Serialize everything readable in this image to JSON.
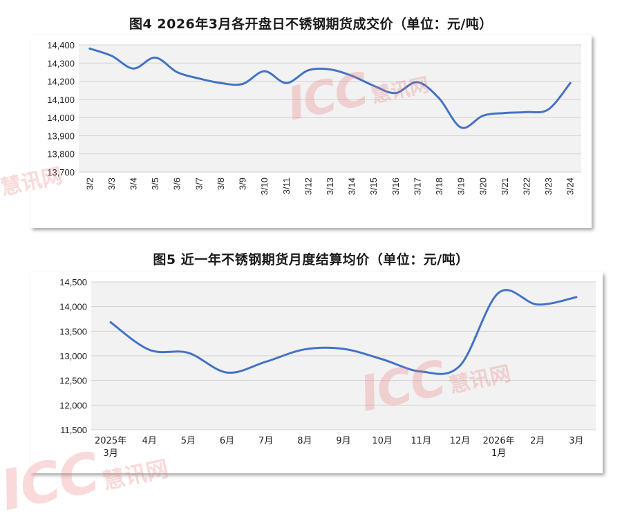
{
  "chart_data": [
    {
      "type": "line",
      "title": "图4 2026年3月各开盘日不锈钢期货成交价（单位：元/吨）",
      "categories": [
        "3/2",
        "3/3",
        "3/4",
        "3/5",
        "3/6",
        "3/7",
        "3/8",
        "3/9",
        "3/10",
        "3/11",
        "3/12",
        "3/13",
        "3/14",
        "3/15",
        "3/16",
        "3/17",
        "3/18",
        "3/19",
        "3/20",
        "3/21",
        "3/22",
        "3/23",
        "3/24"
      ],
      "series": [
        {
          "values": [
            14380,
            14340,
            14270,
            14330,
            14250,
            14215,
            14190,
            14185,
            14255,
            14190,
            14260,
            14265,
            14230,
            14175,
            14135,
            14195,
            14105,
            13945,
            14010,
            14025,
            14030,
            14045,
            14190
          ]
        }
      ],
      "yticks": [
        "14,400",
        "14,300",
        "14,200",
        "14,100",
        "14,000",
        "13,900",
        "13,800",
        "13,700"
      ],
      "ylim": [
        13700,
        14400
      ],
      "grid": true,
      "line_color": "#4472C4"
    },
    {
      "type": "line",
      "title": "图5 近一年不锈钢期货月度结算均价（单位：元/吨）",
      "categories": [
        [
          "2025年",
          "3月"
        ],
        [
          "4月"
        ],
        [
          "5月"
        ],
        [
          "6月"
        ],
        [
          "7月"
        ],
        [
          "8月"
        ],
        [
          "9月"
        ],
        [
          "10月"
        ],
        [
          "11月"
        ],
        [
          "12月"
        ],
        [
          "2026年",
          "1月"
        ],
        [
          "2月"
        ],
        [
          "3月"
        ]
      ],
      "series": [
        {
          "values": [
            13680,
            13120,
            13060,
            12660,
            12880,
            13130,
            13140,
            12930,
            12680,
            12800,
            14280,
            14040,
            14190
          ]
        }
      ],
      "yticks": [
        "14,500",
        "14,000",
        "13,500",
        "13,000",
        "12,500",
        "12,000",
        "11,500"
      ],
      "ylim": [
        11500,
        14500
      ],
      "grid": true,
      "line_color": "#4472C4"
    }
  ],
  "watermarks": {
    "brand": "ICC",
    "cn": "慧讯网",
    "color": "#E87878"
  }
}
